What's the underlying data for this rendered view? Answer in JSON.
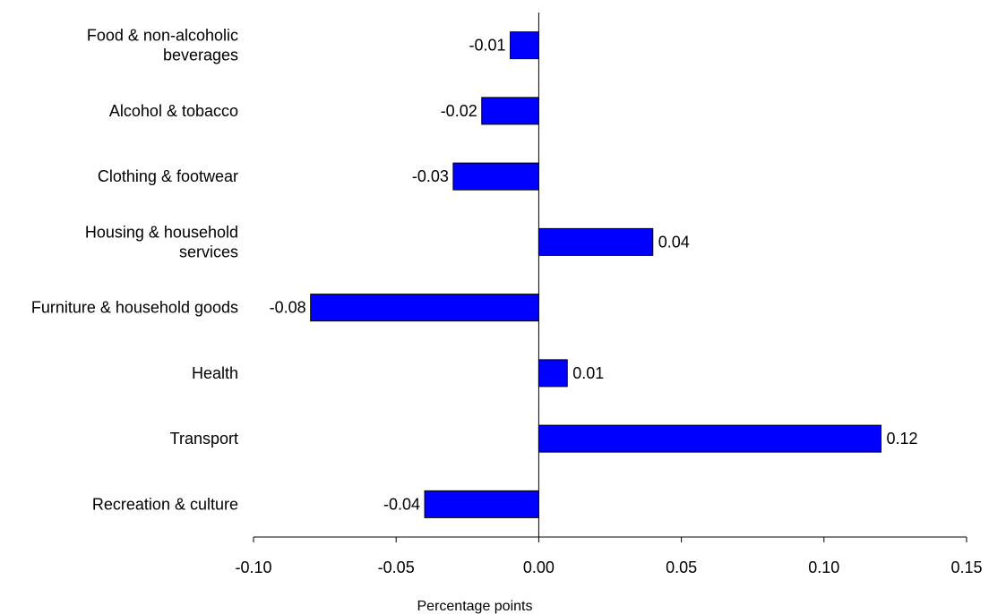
{
  "chart_data": {
    "type": "bar",
    "orientation": "horizontal",
    "categories": [
      [
        "Food & non-alcoholic",
        "beverages"
      ],
      [
        "Alcohol & tobacco"
      ],
      [
        "Clothing & footwear"
      ],
      [
        "Housing & household",
        "services"
      ],
      [
        "Furniture & household goods"
      ],
      [
        "Health"
      ],
      [
        "Transport"
      ],
      [
        "Recreation & culture"
      ]
    ],
    "values": [
      -0.01,
      -0.02,
      -0.03,
      0.04,
      -0.08,
      0.01,
      0.12,
      -0.04
    ],
    "value_labels": [
      "-0.01",
      "-0.02",
      "-0.03",
      "0.04",
      "-0.08",
      "0.01",
      "0.12",
      "-0.04"
    ],
    "xlabel": "Percentage points",
    "xlim": [
      -0.1,
      0.15
    ],
    "xticks": [
      -0.1,
      -0.05,
      0.0,
      0.05,
      0.1,
      0.15
    ],
    "xtick_labels": [
      "-0.10",
      "-0.05",
      "0.00",
      "0.05",
      "0.10",
      "0.15"
    ],
    "grid": false,
    "legend": "none",
    "colors": {
      "bar_fill": "#0000ff",
      "bar_stroke": "#000000",
      "axis": "#000000"
    }
  }
}
